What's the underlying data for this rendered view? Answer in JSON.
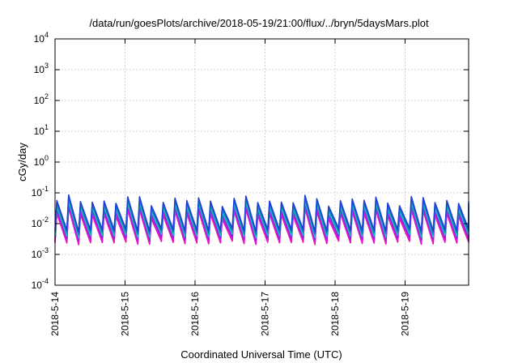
{
  "chart_data": {
    "type": "line",
    "title": "/data/run/goesPlots/archive/2018-05-19/21:00/flux/../bryn/5daysMars.plot",
    "xlabel": "Coordinated Universal Time (UTC)",
    "ylabel": "cGy/day",
    "xlim": [
      "2018-05-14 00:00",
      "2018-05-19 21:00"
    ],
    "ylim": [
      0.0001,
      10000
    ],
    "yscale": "log",
    "grid": true,
    "x_ticks": [
      "2018-5-14",
      "2018-5-15",
      "2018-5-16",
      "2018-5-17",
      "2018-5-18",
      "2018-5-19"
    ],
    "y_ticks": [
      {
        "base": "10",
        "exp": "4"
      },
      {
        "base": "10",
        "exp": "3"
      },
      {
        "base": "10",
        "exp": "2"
      },
      {
        "base": "10",
        "exp": "1"
      },
      {
        "base": "10",
        "exp": "0"
      },
      {
        "base": "10",
        "exp": "-1"
      },
      {
        "base": "10",
        "exp": "-2"
      },
      {
        "base": "10",
        "exp": "-3"
      },
      {
        "base": "10",
        "exp": "-4"
      }
    ],
    "oscillation": {
      "cycles_per_day": 6,
      "peak_range": [
        0.035,
        0.09
      ],
      "trough_range": [
        0.0015,
        0.004
      ]
    },
    "series": [
      {
        "color": "#1f3fd8",
        "level": 1.0
      },
      {
        "color": "#0a7dbd",
        "level": 0.86
      },
      {
        "color": "#17b8a6",
        "level": 0.74
      },
      {
        "color": "#22c1e8",
        "level": 0.66
      },
      {
        "color": "#7a28d9",
        "level": 0.55
      },
      {
        "color": "#b01fd4",
        "level": 0.45
      },
      {
        "color": "#d61bd0",
        "level": 0.37
      },
      {
        "color": "#ff00ff",
        "level": 0.3
      },
      {
        "color": "#e0157a",
        "level": 0.24
      }
    ]
  }
}
